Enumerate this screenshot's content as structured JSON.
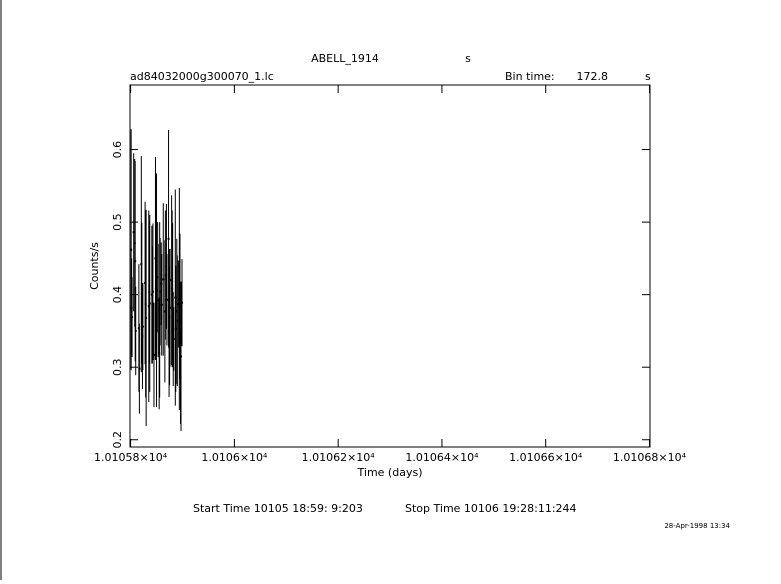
{
  "chart_data": {
    "type": "errorbar",
    "title": "ABELL_1914",
    "title_unit": "s",
    "subtitle": "ad84032000g300070_1.lc",
    "bin_time_label": "Bin time:",
    "bin_time": "172.8",
    "bin_time_unit": "s",
    "x_label": "Time (days)",
    "y_label": "Counts/s",
    "start_time": "Start Time 10105 18:59: 9:203",
    "stop_time": "Stop Time 10106 19:28:11:244",
    "date_stamp": "28-Apr-1998 13:34",
    "color": "#000000",
    "xlim": [
      10105.7988,
      10106.801
    ],
    "ylim": [
      0.19,
      0.689
    ],
    "xticks": [
      {
        "value": 10105.8,
        "label": "1.01058×10⁴"
      },
      {
        "value": 10106.0,
        "label": "1.0106×10⁴"
      },
      {
        "value": 10106.2,
        "label": "1.01062×10⁴"
      },
      {
        "value": 10106.4,
        "label": "1.01064×10⁴"
      },
      {
        "value": 10106.6,
        "label": "1.01066×10⁴"
      },
      {
        "value": 10106.8,
        "label": "1.01068×10⁴"
      }
    ],
    "yticks": [
      0.2,
      0.3,
      0.4,
      0.5,
      0.6
    ],
    "x": [
      10105.801,
      10105.802,
      10105.8028,
      10105.8059,
      10105.8079,
      10105.8088,
      10105.8098,
      10105.8159,
      10105.8169,
      10105.8206,
      10105.8216,
      10105.8228,
      10105.8236,
      10105.8279,
      10105.8289,
      10105.8299,
      10105.835,
      10105.836,
      10105.8369,
      10105.8409,
      10105.8419,
      10105.843,
      10105.845,
      10105.8479,
      10105.8487,
      10105.8499,
      10105.8521,
      10105.8531,
      10105.855,
      10105.856,
      10105.857,
      10105.859,
      10105.8599,
      10105.8629,
      10105.866,
      10105.867,
      10105.869,
      10105.87,
      10105.8731,
      10105.8741,
      10105.8751,
      10105.876,
      10105.879,
      10105.88,
      10105.881,
      10105.8821,
      10105.8831,
      10105.8861,
      10105.887,
      10105.889,
      10105.89,
      10105.892,
      10105.8939,
      10105.8951,
      10105.8961,
      10105.8971,
      10105.899
    ],
    "values": [
      0.462,
      0.382,
      0.369,
      0.486,
      0.471,
      0.446,
      0.35,
      0.354,
      0.298,
      0.442,
      0.402,
      0.343,
      0.356,
      0.416,
      0.387,
      0.368,
      0.384,
      0.403,
      0.388,
      0.4,
      0.386,
      0.404,
      0.317,
      0.45,
      0.408,
      0.406,
      0.424,
      0.392,
      0.319,
      0.379,
      0.404,
      0.415,
      0.386,
      0.421,
      0.377,
      0.427,
      0.439,
      0.393,
      0.477,
      0.349,
      0.369,
      0.382,
      0.42,
      0.408,
      0.4,
      0.339,
      0.339,
      0.396,
      0.353,
      0.377,
      0.364,
      0.387,
      0.394,
      0.384,
      0.287,
      0.315,
      0.389
    ],
    "errors": [
      0.166,
      0.068,
      0.055,
      0.109,
      0.116,
      0.138,
      0.061,
      0.088,
      0.062,
      0.149,
      0.097,
      0.073,
      0.06,
      0.112,
      0.129,
      0.149,
      0.132,
      0.098,
      0.122,
      0.095,
      0.081,
      0.094,
      0.072,
      0.14,
      0.085,
      0.161,
      0.076,
      0.078,
      0.077,
      0.121,
      0.074,
      0.057,
      0.07,
      0.105,
      0.098,
      0.089,
      0.086,
      0.063,
      0.15,
      0.09,
      0.094,
      0.081,
      0.117,
      0.108,
      0.099,
      0.065,
      0.044,
      0.149,
      0.087,
      0.1,
      0.09,
      0.06,
      0.153,
      0.1,
      0.065,
      0.103,
      0.06
    ]
  }
}
